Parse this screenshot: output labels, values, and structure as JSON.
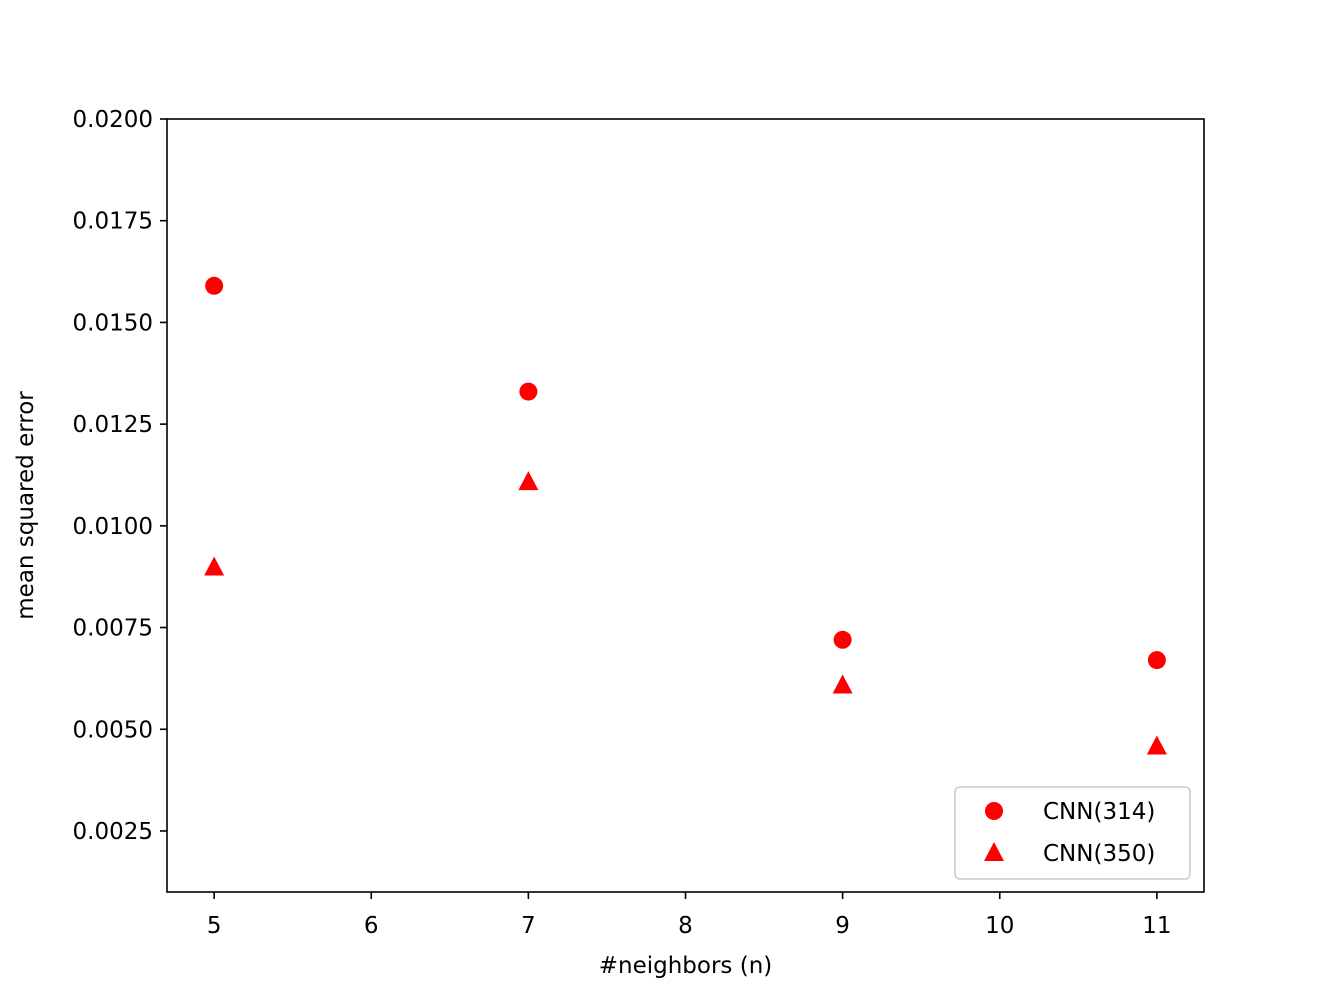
{
  "chart_data": {
    "type": "scatter",
    "xlabel": "#neighbors (n)",
    "ylabel": "mean squared error",
    "xlim": [
      4.7,
      11.3
    ],
    "ylim": [
      0.001,
      0.02
    ],
    "x_ticks": [
      5,
      6,
      7,
      8,
      9,
      10,
      11
    ],
    "x_tick_labels": [
      "5",
      "6",
      "7",
      "8",
      "9",
      "10",
      "11"
    ],
    "y_ticks": [
      0.0025,
      0.005,
      0.0075,
      0.01,
      0.0125,
      0.015,
      0.0175,
      0.02
    ],
    "y_tick_labels": [
      "0.0025",
      "0.0050",
      "0.0075",
      "0.0100",
      "0.0125",
      "0.0150",
      "0.0175",
      "0.0200"
    ],
    "grid": false,
    "legend_position": "lower-right",
    "series": [
      {
        "name": "CNN(314)",
        "marker": "circle",
        "color": "#ff0000",
        "x": [
          5,
          7,
          9,
          11
        ],
        "y": [
          0.0159,
          0.0133,
          0.0072,
          0.0067
        ]
      },
      {
        "name": "CNN(350)",
        "marker": "triangle",
        "color": "#ff0000",
        "x": [
          5,
          7,
          9,
          11
        ],
        "y": [
          0.009,
          0.0111,
          0.0061,
          0.0046
        ]
      }
    ]
  }
}
